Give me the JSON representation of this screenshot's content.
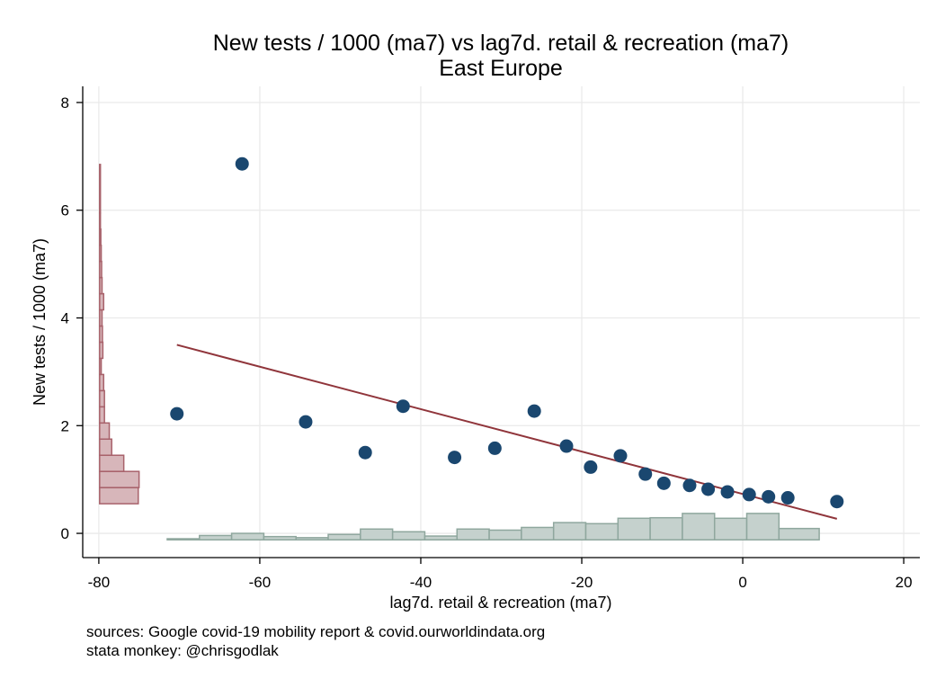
{
  "chart_data": {
    "type": "scatter",
    "title": "New tests / 1000 (ma7) vs lag7d. retail & recreation (ma7)",
    "subtitle": "East Europe",
    "xlabel": "lag7d. retail & recreation (ma7)",
    "ylabel": "New tests / 1000 (ma7)",
    "xlim": [
      -82,
      22
    ],
    "ylim": [
      -0.45,
      8.3
    ],
    "x_ticks": [
      "-80",
      "-60",
      "-40",
      "-20",
      "0",
      "20"
    ],
    "x_tick_values": [
      -80,
      -60,
      -40,
      -20,
      0,
      20
    ],
    "y_ticks": [
      "0",
      "2",
      "4",
      "6",
      "8"
    ],
    "y_tick_values": [
      0,
      2,
      4,
      6,
      8
    ],
    "grid": true,
    "points": [
      {
        "x": -70.3,
        "y": 2.22
      },
      {
        "x": -62.2,
        "y": 6.86
      },
      {
        "x": -54.3,
        "y": 2.07
      },
      {
        "x": -46.9,
        "y": 1.5
      },
      {
        "x": -42.2,
        "y": 2.36
      },
      {
        "x": -35.8,
        "y": 1.41
      },
      {
        "x": -30.8,
        "y": 1.58
      },
      {
        "x": -25.9,
        "y": 2.27
      },
      {
        "x": -21.9,
        "y": 1.62
      },
      {
        "x": -18.9,
        "y": 1.23
      },
      {
        "x": -15.2,
        "y": 1.44
      },
      {
        "x": -12.1,
        "y": 1.1
      },
      {
        "x": -9.8,
        "y": 0.93
      },
      {
        "x": -6.6,
        "y": 0.89
      },
      {
        "x": -4.3,
        "y": 0.82
      },
      {
        "x": -1.9,
        "y": 0.77
      },
      {
        "x": 0.8,
        "y": 0.72
      },
      {
        "x": 3.2,
        "y": 0.68
      },
      {
        "x": 5.6,
        "y": 0.66
      },
      {
        "x": 11.7,
        "y": 0.59
      }
    ],
    "fit_line": {
      "x": [
        -70.3,
        11.7
      ],
      "y": [
        3.5,
        0.27
      ]
    },
    "x_histogram": {
      "base": -0.12,
      "bins": [
        {
          "from": -71.5,
          "to": -67.5,
          "height": 0.02
        },
        {
          "from": -67.5,
          "to": -63.5,
          "height": 0.08
        },
        {
          "from": -63.5,
          "to": -59.5,
          "height": 0.12
        },
        {
          "from": -59.5,
          "to": -55.5,
          "height": 0.06
        },
        {
          "from": -55.5,
          "to": -51.5,
          "height": 0.04
        },
        {
          "from": -51.5,
          "to": -47.5,
          "height": 0.1
        },
        {
          "from": -47.5,
          "to": -43.5,
          "height": 0.2
        },
        {
          "from": -43.5,
          "to": -39.5,
          "height": 0.15
        },
        {
          "from": -39.5,
          "to": -35.5,
          "height": 0.07
        },
        {
          "from": -35.5,
          "to": -31.5,
          "height": 0.2
        },
        {
          "from": -31.5,
          "to": -27.5,
          "height": 0.18
        },
        {
          "from": -27.5,
          "to": -23.5,
          "height": 0.23
        },
        {
          "from": -23.5,
          "to": -19.5,
          "height": 0.32
        },
        {
          "from": -19.5,
          "to": -15.5,
          "height": 0.3
        },
        {
          "from": -15.5,
          "to": -11.5,
          "height": 0.4
        },
        {
          "from": -11.5,
          "to": -7.5,
          "height": 0.41
        },
        {
          "from": -7.5,
          "to": -3.5,
          "height": 0.49
        },
        {
          "from": -3.5,
          "to": 0.5,
          "height": 0.4
        },
        {
          "from": 0.5,
          "to": 4.5,
          "height": 0.49
        },
        {
          "from": 4.5,
          "to": 9.5,
          "height": 0.21
        }
      ]
    },
    "y_histogram": {
      "base": -79.9,
      "bins": [
        {
          "from": 0.55,
          "to": 0.85,
          "width": 4.8
        },
        {
          "from": 0.85,
          "to": 1.15,
          "width": 4.9
        },
        {
          "from": 1.15,
          "to": 1.45,
          "width": 3.0
        },
        {
          "from": 1.45,
          "to": 1.75,
          "width": 1.5
        },
        {
          "from": 1.75,
          "to": 2.05,
          "width": 1.2
        },
        {
          "from": 2.05,
          "to": 2.35,
          "width": 0.6
        },
        {
          "from": 2.35,
          "to": 2.65,
          "width": 0.6
        },
        {
          "from": 2.65,
          "to": 2.95,
          "width": 0.5
        },
        {
          "from": 2.95,
          "to": 3.25,
          "width": 0.2
        },
        {
          "from": 3.25,
          "to": 3.55,
          "width": 0.4
        },
        {
          "from": 3.55,
          "to": 3.85,
          "width": 0.35
        },
        {
          "from": 3.85,
          "to": 4.15,
          "width": 0.3
        },
        {
          "from": 4.15,
          "to": 4.45,
          "width": 0.5
        },
        {
          "from": 4.45,
          "to": 4.75,
          "width": 0.3
        },
        {
          "from": 4.75,
          "to": 5.05,
          "width": 0.25
        },
        {
          "from": 5.05,
          "to": 5.35,
          "width": 0.2
        },
        {
          "from": 5.35,
          "to": 5.65,
          "width": 0.15
        },
        {
          "from": 5.65,
          "to": 5.95,
          "width": 0.1
        },
        {
          "from": 5.95,
          "to": 6.85,
          "width": 0.1
        }
      ]
    },
    "colors": {
      "points": "#1a476f",
      "fit_line": "#90353b",
      "x_hist_fill": "#c5d1cd",
      "x_hist_stroke": "#8fa79e",
      "y_hist_fill": "#d7b6ba",
      "y_hist_stroke": "#a8626b",
      "grid": "#eaeaea"
    }
  },
  "notes": {
    "line1": "sources: Google covid-19 mobility report & covid.ourworldindata.org",
    "line2": "stata monkey: @chrisgodlak"
  }
}
